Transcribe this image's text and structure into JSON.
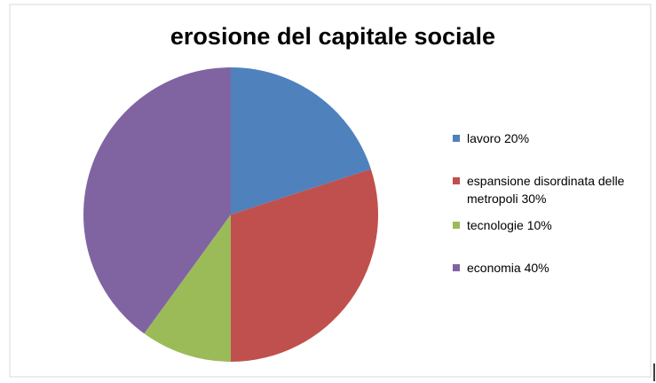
{
  "chart_data": {
    "type": "pie",
    "title": "erosione del capitale sociale",
    "categories": [
      "lavoro 20%",
      "espansione disordinata delle metropoli 30%",
      "tecnologie 10%",
      "economia 40%"
    ],
    "values": [
      20,
      30,
      10,
      40
    ],
    "colors": [
      "#4f81bd",
      "#c0504d",
      "#9bbb59",
      "#8064a2"
    ],
    "legend": "right"
  }
}
